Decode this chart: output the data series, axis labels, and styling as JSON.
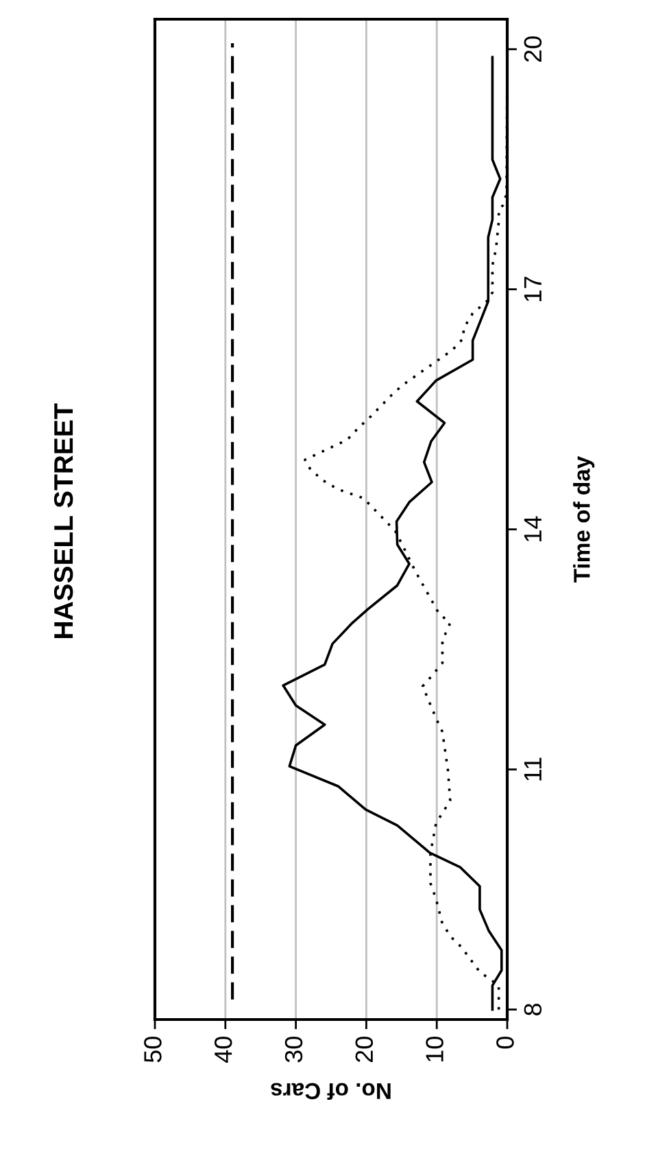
{
  "chart_data": {
    "type": "line",
    "title": "HASSELL STREET",
    "xlabel": "No. of Cars",
    "ylabel": "Time of day",
    "xlim": [
      50,
      0
    ],
    "xticks": [
      50,
      40,
      30,
      20,
      10,
      0
    ],
    "ylim": [
      7.875,
      20.375
    ],
    "yticks": [
      8,
      11,
      14,
      17,
      20
    ],
    "grid": "x",
    "legend": false,
    "marker": "none",
    "ref_lines": [
      {
        "axis": "x",
        "value": 39,
        "color": "#000000",
        "line_style": "dashed"
      }
    ],
    "series": [
      {
        "color": "#000000",
        "line_style": "solid",
        "x": [
          2.1,
          2.1,
          0.8,
          0.8,
          2.6,
          3.9,
          3.9,
          6.7,
          11,
          11.8,
          15.6,
          20.1,
          24.0,
          30.9,
          30,
          25.9,
          30,
          31.8,
          25.9,
          24.8,
          22.0,
          19.8,
          15.6,
          13.9,
          15.6,
          15.7,
          13.9,
          10.7,
          11.8,
          10.8,
          8.9,
          12.8,
          10.1,
          4.9,
          4.9,
          2.7,
          2.7,
          2.1,
          2.1,
          1.0,
          2.1,
          2.1
        ],
        "values": [
          8.0,
          8.3,
          8.49,
          8.74,
          8.98,
          9.25,
          9.54,
          9.78,
          9.96,
          10.02,
          10.3,
          10.5,
          10.79,
          11.04,
          11.3,
          11.56,
          11.8,
          12.05,
          12.31,
          12.57,
          12.83,
          13.0,
          13.3,
          13.57,
          13.81,
          14.1,
          14.34,
          14.59,
          14.84,
          15.1,
          15.33,
          15.6,
          15.86,
          16.12,
          16.36,
          16.85,
          17.65,
          17.87,
          18.15,
          18.38,
          18.62,
          19.9
        ]
      },
      {
        "color": "#000000",
        "line_style": "dotted",
        "x": [
          1.2,
          1.2,
          3.9,
          6.5,
          7.9,
          9.2,
          10.1,
          10.9,
          10.9,
          10.1,
          8.1,
          8.4,
          9.2,
          10.1,
          12,
          10.7,
          9.2,
          9.2,
          8.1,
          9.7,
          13,
          14.9,
          15.9,
          20.4,
          24.0,
          26.3,
          28,
          28.7,
          22.7,
          21.1,
          19.5,
          16.5,
          14.9,
          7.8,
          6.2,
          6.2,
          4.9,
          2.9,
          2.1,
          2.1,
          1.6,
          1.2,
          1.2,
          0.6,
          0.1,
          0
        ],
        "values": [
          8.0,
          8.3,
          8.47,
          8.78,
          8.9,
          9.07,
          9.38,
          9.58,
          9.95,
          10.33,
          10.61,
          10.98,
          11.47,
          11.64,
          12.04,
          12.17,
          12.33,
          12.61,
          12.83,
          12.95,
          13.47,
          13.81,
          13.98,
          14.39,
          14.5,
          14.62,
          14.76,
          14.87,
          15.12,
          15.27,
          15.4,
          15.67,
          15.8,
          16.24,
          16.39,
          16.51,
          16.7,
          16.85,
          16.96,
          17.3,
          17.5,
          17.85,
          18.0,
          18.05,
          18.19,
          19.9
        ]
      }
    ]
  }
}
